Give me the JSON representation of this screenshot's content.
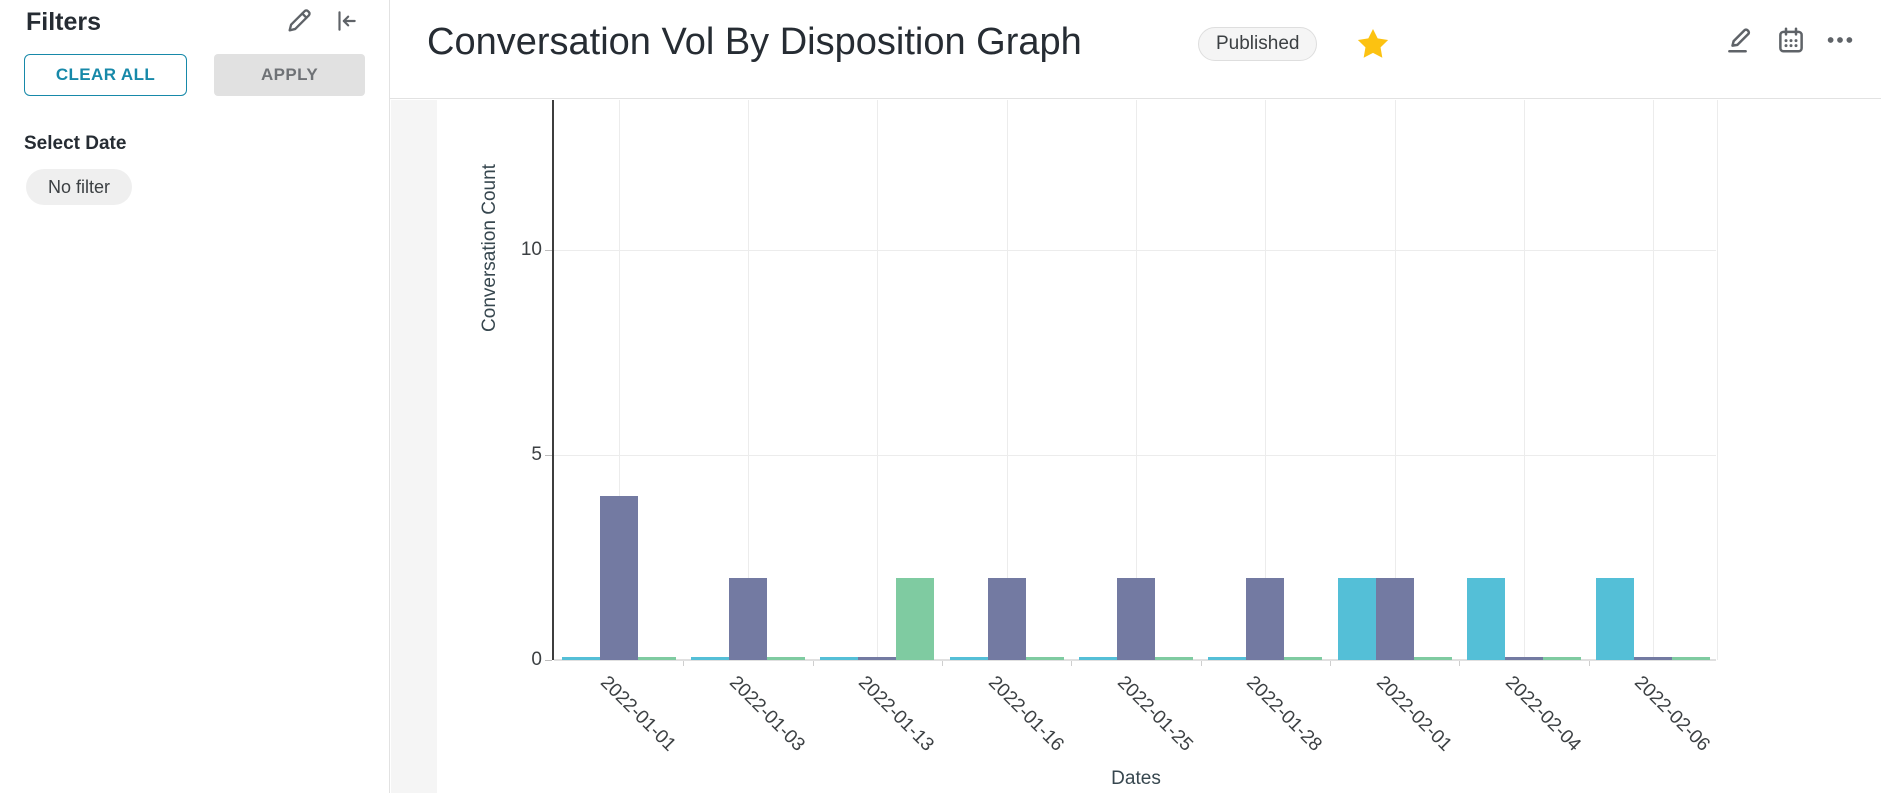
{
  "sidebar": {
    "title": "Filters",
    "clear_all_label": "CLEAR ALL",
    "apply_label": "APPLY",
    "select_date_label": "Select Date",
    "date_filter_value": "No filter"
  },
  "header": {
    "title": "Conversation Vol By Disposition Graph",
    "status_badge": "Published",
    "favorited": true
  },
  "colors": {
    "accent": "#1789a9",
    "star": "#fcc211",
    "icon_gray": "#5f6368",
    "grid": "#ececec",
    "axis": "#3d3d3d"
  },
  "chart_data": {
    "type": "bar",
    "title": "",
    "xlabel": "Dates",
    "ylabel": "Conversation Count",
    "categories": [
      "2022-01-01",
      "2022-01-03",
      "2022-01-13",
      "2022-01-16",
      "2022-01-25",
      "2022-01-28",
      "2022-02-01",
      "2022-02-04",
      "2022-02-06"
    ],
    "series": [
      {
        "name": "cyan",
        "color": "#54bfd7",
        "values": [
          0,
          0,
          0,
          0,
          0,
          0,
          2,
          2,
          2
        ]
      },
      {
        "name": "purple",
        "color": "#737aa2",
        "values": [
          4,
          2,
          0,
          2,
          2,
          2,
          2,
          0,
          0
        ]
      },
      {
        "name": "green",
        "color": "#7fcba1",
        "values": [
          0,
          0,
          2,
          0,
          0,
          0,
          0,
          0,
          0
        ]
      }
    ],
    "yticks": [
      0,
      5,
      10
    ],
    "ylim": [
      0,
      13.66
    ],
    "grid": true,
    "legend": false
  }
}
